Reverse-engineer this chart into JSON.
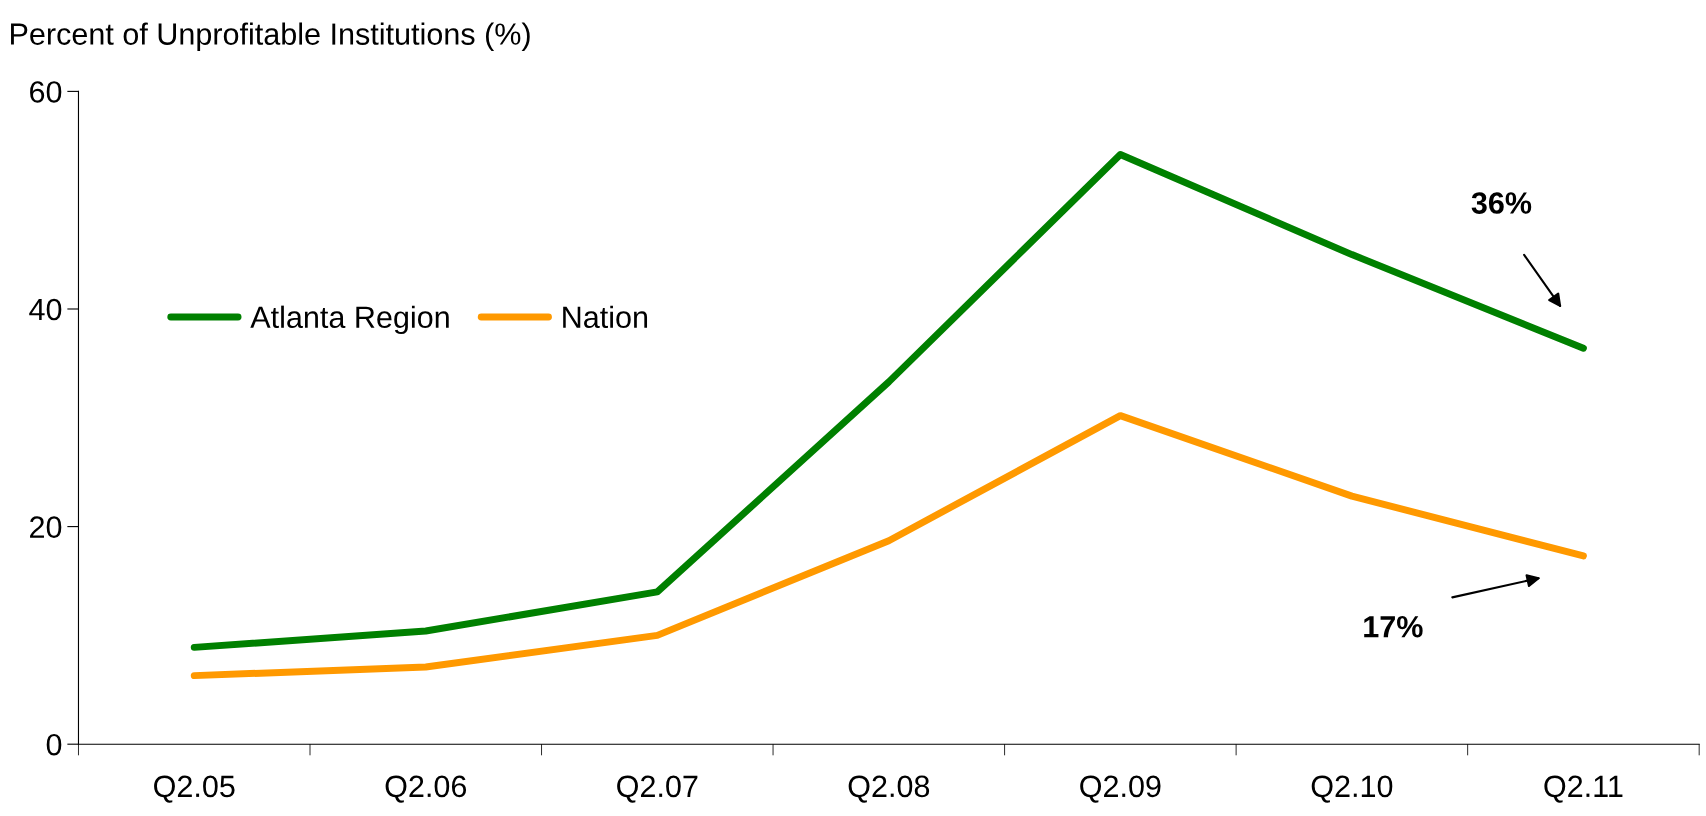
{
  "chart_data": {
    "type": "line",
    "ylabel": "Percent of Unprofitable Institutions (%)",
    "categories": [
      "Q2.05",
      "Q2.06",
      "Q2.07",
      "Q2.08",
      "Q2.09",
      "Q2.10",
      "Q2.11"
    ],
    "series": [
      {
        "name": "Atlanta Region",
        "color": "#008000",
        "values": [
          8.9,
          10.4,
          14.0,
          33.3,
          54.2,
          45.0,
          36.4
        ]
      },
      {
        "name": "Nation",
        "color": "#ff9900",
        "values": [
          6.3,
          7.1,
          10.0,
          18.7,
          30.2,
          22.8,
          17.3
        ]
      }
    ],
    "ylim": [
      0,
      60
    ],
    "yticks": [
      0,
      20,
      40,
      60
    ],
    "grid": false,
    "legend": "left",
    "marker": "none",
    "line_style": "solid",
    "annotations": [
      "36%",
      "17%"
    ]
  }
}
